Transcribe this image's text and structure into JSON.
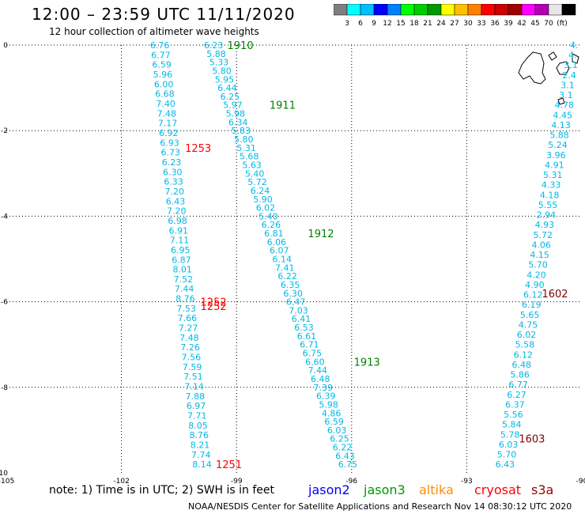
{
  "header": {
    "title": "12:00 – 23:59 UTC 11/11/2020",
    "subtitle": "12 hour collection of altimeter wave heights"
  },
  "colorbar": {
    "colors": [
      "#7f7f7f",
      "#00ffff",
      "#00bfff",
      "#0000ff",
      "#0080ff",
      "#00ff00",
      "#00cc00",
      "#009900",
      "#ffff00",
      "#ffc000",
      "#ff8000",
      "#ff0000",
      "#cc0000",
      "#a00000",
      "#ff00ff",
      "#b000b0",
      "#e6e6e6",
      "#000000"
    ],
    "labels": [
      "3",
      "6",
      "9",
      "12",
      "15",
      "18",
      "21",
      "24",
      "27",
      "30",
      "33",
      "36",
      "39",
      "42",
      "45",
      "70",
      "(ft)"
    ]
  },
  "map": {
    "x_ticks": [
      "-105",
      "-102",
      "-99",
      "-96",
      "-93",
      "-90"
    ],
    "y_ticks": [
      "0",
      "-2",
      "-4",
      "-6",
      "-8",
      "-10"
    ],
    "passes": [
      {
        "name": "jason3",
        "color": "#008000",
        "labels": [
          {
            "text": "1910",
            "lon": -98.9,
            "lat": 0.0
          },
          {
            "text": "1911",
            "lon": -97.8,
            "lat": -1.4
          },
          {
            "text": "1912",
            "lon": -96.8,
            "lat": -4.4
          },
          {
            "text": "1913",
            "lon": -95.6,
            "lat": -7.4
          }
        ]
      },
      {
        "name": "cryosat",
        "color": "#ff0000",
        "labels": [
          {
            "text": "1253",
            "lon": -100.0,
            "lat": -2.4
          },
          {
            "text": "1252",
            "lon": -99.6,
            "lat": -6.0
          },
          {
            "text": "1252",
            "lon": -99.6,
            "lat": -6.1
          },
          {
            "text": "1251",
            "lon": -99.2,
            "lat": -9.8
          }
        ]
      },
      {
        "name": "s3a",
        "color": "#800000",
        "labels": [
          {
            "text": "1602",
            "lon": -90.7,
            "lat": -5.8
          },
          {
            "text": "1603",
            "lon": -91.3,
            "lat": -9.2
          }
        ]
      }
    ],
    "tracks": [
      {
        "id": "cryosat-track",
        "color": "#00b8e6",
        "start": {
          "lon": -101.0,
          "lat": 0.0
        },
        "end": {
          "lon": -99.9,
          "lat": -9.8
        },
        "values": [
          "6.76",
          "6.77",
          "6.59",
          "5.96",
          "6.00",
          "6.68",
          "7.40",
          "7.48",
          "7.17",
          "6.92",
          "6.93",
          "6.73",
          "6.23",
          "6.30",
          "6.33",
          "7.20",
          "6.43",
          "7.20",
          "6.98",
          "6.91",
          "7.11",
          "6.95",
          "6.87",
          "8.01",
          "7.52",
          "7.44",
          "8.76",
          "7.53",
          "7.66",
          "7.27",
          "7.48",
          "7.26",
          "7.56",
          "7.59",
          "7.51",
          "7.14",
          "7.88",
          "6.97",
          "7.71",
          "8.05",
          "8.76",
          "8.21",
          "7.74",
          "8.14"
        ]
      },
      {
        "id": "jason3-track",
        "color": "#00b8e6",
        "start": {
          "lon": -99.6,
          "lat": 0.0
        },
        "end": {
          "lon": -96.1,
          "lat": -9.8
        },
        "values": [
          "6.23",
          "5.88",
          "5.33",
          "5.80",
          "5.95",
          "6.44",
          "6.25",
          "5.97",
          "5.98",
          "6.34",
          "5.83",
          "5.80",
          "5.31",
          "5.68",
          "5.63",
          "5.40",
          "5.72",
          "6.24",
          "5.90",
          "6.02",
          "5.40",
          "6.26",
          "6.81",
          "6.06",
          "6.07",
          "6.14",
          "7.41",
          "6.22",
          "6.35",
          "6.30",
          "6.47",
          "7.03",
          "6.41",
          "6.53",
          "6.61",
          "6.71",
          "6.75",
          "6.60",
          "7.44",
          "6.48",
          "7.39",
          "6.39",
          "5.98",
          "4.86",
          "6.59",
          "6.03",
          "6.25",
          "6.22",
          "6.43",
          "6.75"
        ]
      },
      {
        "id": "s3a-track",
        "color": "#00b8e6",
        "start": {
          "lon": -90.2,
          "lat": 0.0
        },
        "end": {
          "lon": -92.0,
          "lat": -9.8
        },
        "values": [
          "4.",
          "4.",
          "3.1",
          "2.4",
          "3.1",
          "3.1",
          "4.78",
          "4.45",
          "4.13",
          "5.88",
          "5.24",
          "3.96",
          "4.91",
          "5.31",
          "4.33",
          "4.18",
          "5.55",
          "2.94",
          "4.93",
          "5.72",
          "4.06",
          "4.15",
          "5.70",
          "4.20",
          "4.90",
          "6.12",
          "6.19",
          "5.65",
          "4.75",
          "6.02",
          "5.58",
          "6.12",
          "6.48",
          "5.86",
          "6.77",
          "6.27",
          "6.37",
          "5.56",
          "5.84",
          "5.78",
          "6.03",
          "5.70",
          "6.43"
        ]
      }
    ]
  },
  "footer": {
    "note": "note:  1) Time is in UTC;  2) SWH is in feet",
    "legend": [
      {
        "name": "jason2",
        "color": "#0000ff"
      },
      {
        "name": "jason3",
        "color": "#009900"
      },
      {
        "name": "altika",
        "color": "#ff8c00"
      },
      {
        "name": "cryosat",
        "color": "#ff0000"
      },
      {
        "name": "s3a",
        "color": "#990000"
      }
    ],
    "credit": "NOAA/NESDIS Center for Satellite Applications and Research     Nov 14 08:30:12 UTC 2020"
  }
}
